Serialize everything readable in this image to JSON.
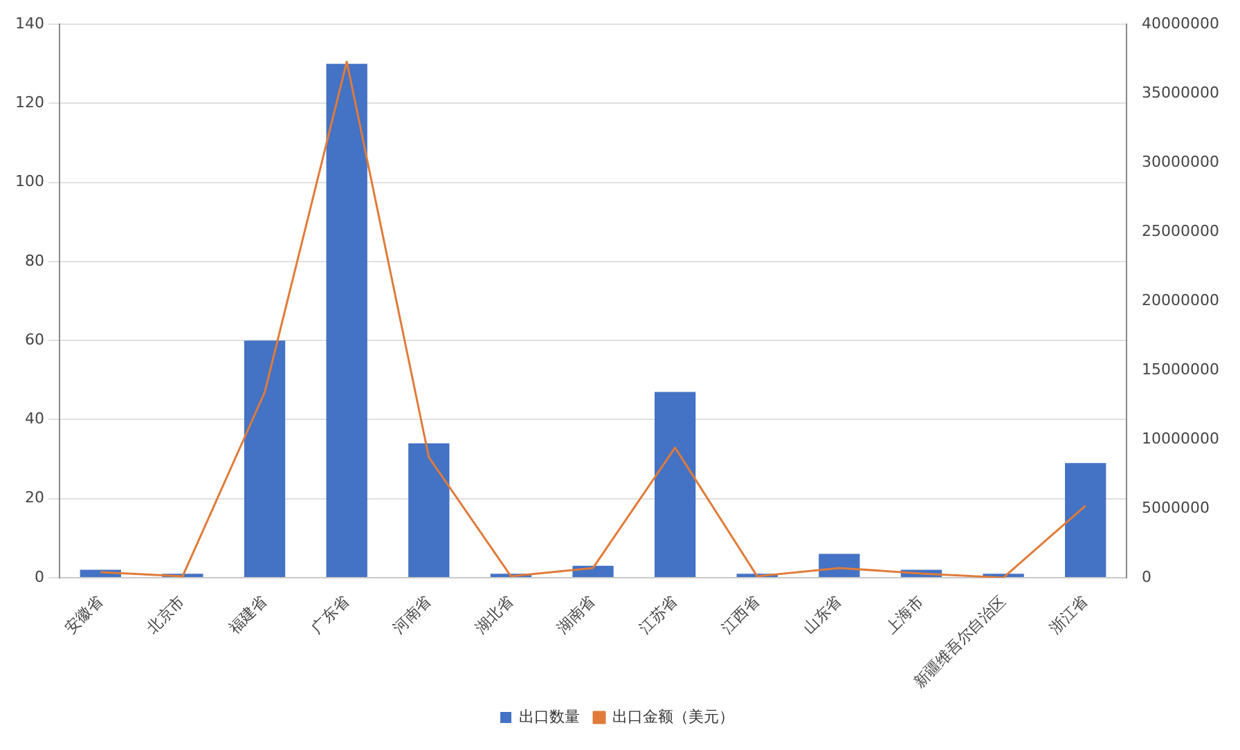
{
  "chart_data": {
    "type": "bar",
    "categories": [
      "安徽省",
      "北京市",
      "福建省",
      "广东省",
      "河南省",
      "湖北省",
      "湖南省",
      "江苏省",
      "江西省",
      "山东省",
      "上海市",
      "新疆维吾尔自治区",
      "浙江省"
    ],
    "series": [
      {
        "name": "出口数量",
        "color": "#4472c4",
        "values": [
          2,
          1,
          60,
          130,
          34,
          1,
          3,
          47,
          1,
          6,
          2,
          1,
          29
        ]
      },
      {
        "name": "出口金额（美元）",
        "type": "line",
        "axis": "y2",
        "color": "#e07b39",
        "values": [
          400000,
          100000,
          13400000,
          37300000,
          8700000,
          100000,
          700000,
          9400000,
          100000,
          700000,
          300000,
          0,
          5200000
        ]
      }
    ],
    "ylim": [
      0,
      140
    ],
    "yticks": [
      0,
      20,
      40,
      60,
      80,
      100,
      120,
      140
    ],
    "y2lim": [
      0,
      40000000
    ],
    "y2ticks": [
      0,
      5000000,
      10000000,
      15000000,
      20000000,
      25000000,
      30000000,
      35000000,
      40000000
    ],
    "grid": "y",
    "legend": "bottom",
    "marker": "none",
    "line_style": "solid"
  }
}
